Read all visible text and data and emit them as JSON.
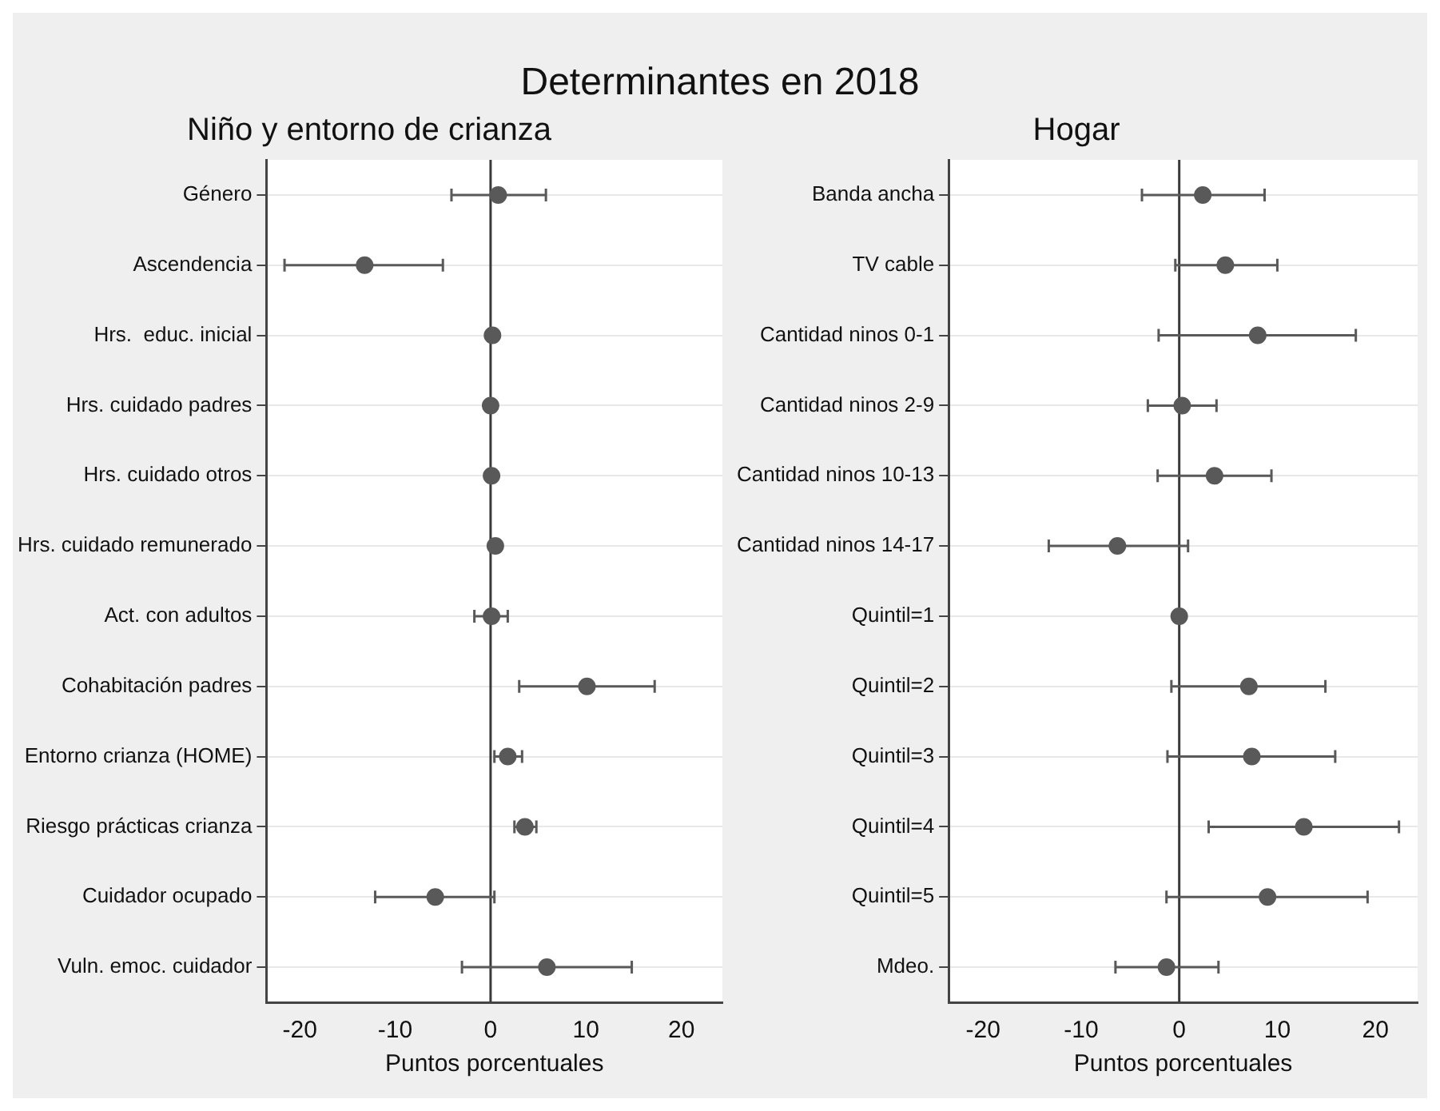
{
  "chart_data": [
    {
      "type": "scatter",
      "title": "Determinantes en 2018",
      "subtitle": "Niño y entorno de crianza",
      "orientation": "horizontal",
      "xlabel": "Puntos porcentuales",
      "marker": "circle",
      "grid": "y",
      "categories": [
        "Género",
        "Ascendencia",
        "Hrs.  educ. inicial",
        "Hrs. cuidado padres",
        "Hrs. cuidado otros",
        "Hrs. cuidado remunerado",
        "Act. con adultos",
        "Cohabitación padres",
        "Entorno crianza (HOME)",
        "Riesgo prácticas crianza",
        "Cuidador ocupado",
        "Vuln. emoc. cuidador"
      ],
      "values": [
        0.8,
        -13.2,
        0.2,
        0.0,
        0.1,
        0.5,
        0.1,
        10.1,
        1.8,
        3.6,
        -5.8,
        5.9
      ],
      "errors": [
        [
          -4.1,
          5.8
        ],
        [
          -21.6,
          -5.0
        ],
        null,
        null,
        null,
        null,
        [
          -1.7,
          1.8
        ],
        [
          3.0,
          17.2
        ],
        [
          0.4,
          3.3
        ],
        [
          2.5,
          4.8
        ],
        [
          -12.1,
          0.4
        ],
        [
          -3.0,
          14.8
        ]
      ],
      "color": "#595959",
      "xlim": [
        -23.5,
        24.3
      ],
      "xticks": [
        -20,
        -10,
        0,
        10,
        20
      ],
      "ref_lines": [
        {
          "axis": "x",
          "value": 0,
          "color": "#3a3a3a"
        }
      ]
    },
    {
      "type": "scatter",
      "subtitle": "Hogar",
      "orientation": "horizontal",
      "xlabel": "Puntos porcentuales",
      "marker": "circle",
      "grid": "y",
      "categories": [
        "Banda ancha",
        "TV cable",
        "Cantidad ninos 0-1",
        "Cantidad ninos 2-9",
        "Cantidad ninos 10-13",
        "Cantidad ninos 14-17",
        "Quintil=1",
        "Quintil=2",
        "Quintil=3",
        "Quintil=4",
        "Quintil=5",
        "Mdeo."
      ],
      "values": [
        2.4,
        4.7,
        8.0,
        0.3,
        3.6,
        -6.3,
        0.0,
        7.1,
        7.4,
        12.7,
        9.0,
        -1.3
      ],
      "errors": [
        [
          -3.8,
          8.7
        ],
        [
          -0.4,
          10.0
        ],
        [
          -2.1,
          18.0
        ],
        [
          -3.2,
          3.8
        ],
        [
          -2.2,
          9.4
        ],
        [
          -13.3,
          0.9
        ],
        null,
        [
          -0.8,
          14.9
        ],
        [
          -1.2,
          15.9
        ],
        [
          3.0,
          22.4
        ],
        [
          -1.3,
          19.2
        ],
        [
          -6.5,
          4.0
        ]
      ],
      "color": "#595959",
      "xlim": [
        -23.5,
        24.3
      ],
      "xticks": [
        -20,
        -10,
        0,
        10,
        20
      ],
      "ref_lines": [
        {
          "axis": "x",
          "value": 0,
          "color": "#3a3a3a"
        }
      ]
    }
  ]
}
